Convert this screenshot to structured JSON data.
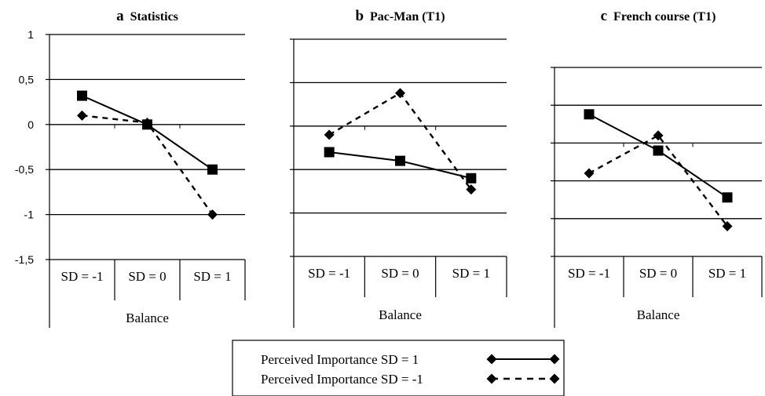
{
  "chart_data": [
    {
      "type": "line",
      "letter": "a",
      "title": "Statistics",
      "xlabel": "Balance",
      "categories": [
        "SD = -1",
        "SD = 0",
        "SD = 1"
      ],
      "ylim": [
        -1.5,
        1
      ],
      "yticks": [
        1,
        0.5,
        0,
        -0.5,
        -1,
        -1.5
      ],
      "ytick_labels": [
        "1",
        "0,5",
        "0",
        "-0,5",
        "-1",
        "-1,5"
      ],
      "grid": true,
      "series": [
        {
          "name": "Perceived Importance SD = 1",
          "style": "solid",
          "marker": "square",
          "values": [
            0.32,
            0.0,
            -0.5
          ]
        },
        {
          "name": "Perceived Importance SD = -1",
          "style": "dashed",
          "marker": "diamond",
          "values": [
            0.1,
            0.02,
            -1.0
          ]
        }
      ]
    },
    {
      "type": "line",
      "letter": "b",
      "title": "Pac-Man (T1)",
      "xlabel": "Balance",
      "categories": [
        "SD = -1",
        "SD = 0",
        "SD = 1"
      ],
      "ylim": [
        -1.5,
        1
      ],
      "yticks": [
        1,
        0.5,
        0,
        -0.5,
        -1,
        -1.5
      ],
      "ytick_labels": [],
      "grid": true,
      "series": [
        {
          "name": "Perceived Importance SD = 1",
          "style": "solid",
          "marker": "square",
          "values": [
            -0.3,
            -0.4,
            -0.6
          ]
        },
        {
          "name": "Perceived Importance SD = -1",
          "style": "dashed",
          "marker": "diamond",
          "values": [
            -0.1,
            0.38,
            -0.73
          ]
        }
      ]
    },
    {
      "type": "line",
      "letter": "c",
      "title": "French course (T1)",
      "xlabel": "Balance",
      "categories": [
        "SD = -1",
        "SD = 0",
        "SD = 1"
      ],
      "ylim": [
        -1.5,
        1
      ],
      "yticks": [
        1,
        0.5,
        0,
        -0.5,
        -1,
        -1.5
      ],
      "ytick_labels": [],
      "grid": true,
      "series": [
        {
          "name": "Perceived Importance SD = 1",
          "style": "solid",
          "marker": "square",
          "values": [
            0.38,
            -0.1,
            -0.72
          ]
        },
        {
          "name": "Perceived Importance SD = -1",
          "style": "dashed",
          "marker": "diamond",
          "values": [
            -0.4,
            0.1,
            -1.1
          ]
        }
      ]
    }
  ],
  "legend": {
    "placement": "bottom-center",
    "entries": [
      {
        "label": "Perceived Importance SD = 1",
        "style": "solid",
        "marker": "diamond"
      },
      {
        "label": "Perceived Importance SD = -1",
        "style": "dashed",
        "marker": "diamond"
      }
    ]
  },
  "colors": {
    "line": "#000000",
    "background": "#ffffff"
  }
}
